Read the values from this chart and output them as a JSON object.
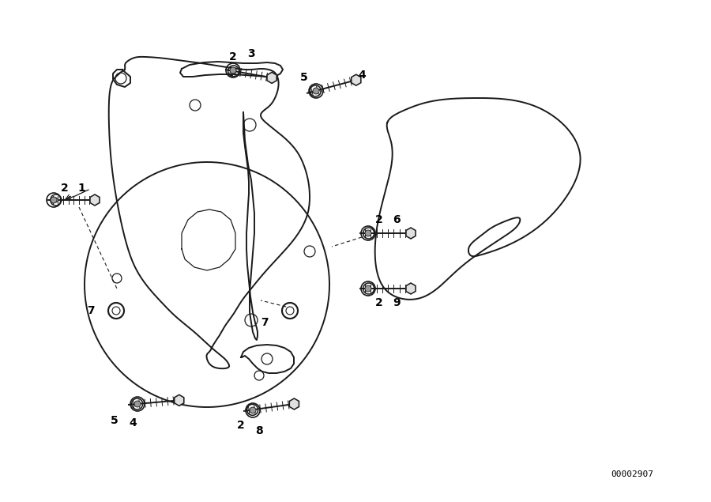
{
  "bg": "#ffffff",
  "lc": "#1a1a1a",
  "lw": 1.4,
  "tlw": 0.9,
  "dpi": 100,
  "fw": 9.0,
  "fh": 6.35,
  "part_number": "00002907",
  "label_fs": 10
}
